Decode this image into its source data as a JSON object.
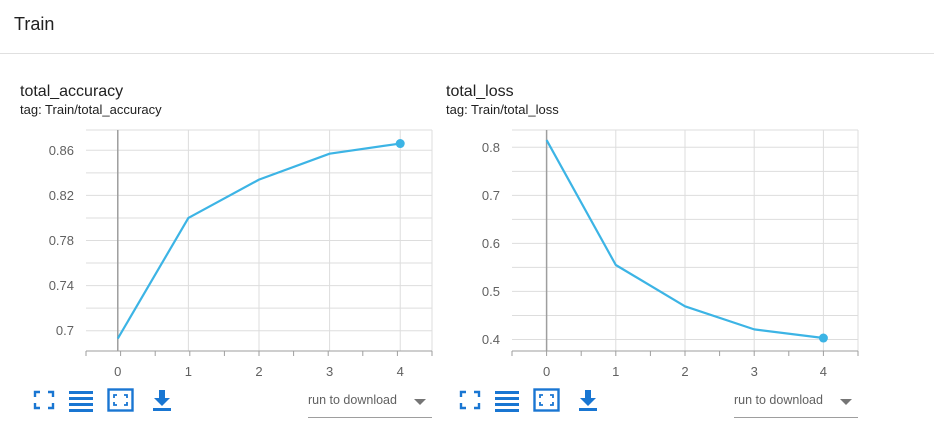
{
  "section": {
    "title": "Train"
  },
  "colors": {
    "series": "#3cb4e5",
    "grid": "#dddddd",
    "axis": "#9e9e9e",
    "zero_line": "#9e9e9e",
    "icon": "#1976d2"
  },
  "toolbar_icons": [
    "fullscreen-icon",
    "toggle-log-scale-icon",
    "fit-domain-icon",
    "download-icon"
  ],
  "cards": [
    {
      "title": "total_accuracy",
      "tag": "tag: Train/total_accuracy",
      "download_select": {
        "label": "run to download"
      },
      "chart_data": {
        "type": "line",
        "title": "total_accuracy",
        "x": [
          0,
          1,
          2,
          3,
          4
        ],
        "series": [
          {
            "values": [
              0.693,
              0.8,
              0.834,
              0.857,
              0.866
            ]
          }
        ],
        "xlim": [
          -0.45,
          4.45
        ],
        "ylim": [
          0.682,
          0.878
        ],
        "yticks": [
          0.7,
          0.74,
          0.78,
          0.82,
          0.86
        ],
        "ytick_labels": [
          "0.7",
          "0.74",
          "0.78",
          "0.82",
          "0.86"
        ],
        "xticks": [
          0,
          1,
          2,
          3,
          4
        ],
        "xtick_labels": [
          "0",
          "1",
          "2",
          "3",
          "4"
        ],
        "grid": true,
        "last_point_marker": true
      }
    },
    {
      "title": "total_loss",
      "tag": "tag: Train/total_loss",
      "download_select": {
        "label": "run to download"
      },
      "chart_data": {
        "type": "line",
        "title": "total_loss",
        "x": [
          0,
          1,
          2,
          3,
          4
        ],
        "series": [
          {
            "values": [
              0.815,
              0.555,
              0.469,
              0.421,
              0.403
            ]
          }
        ],
        "xlim": [
          -0.5,
          4.5
        ],
        "ylim": [
          0.376,
          0.836
        ],
        "yticks": [
          0.4,
          0.5,
          0.6,
          0.7,
          0.8
        ],
        "ytick_labels": [
          "0.4",
          "0.5",
          "0.6",
          "0.7",
          "0.8"
        ],
        "xticks": [
          0,
          1,
          2,
          3,
          4
        ],
        "xtick_labels": [
          "0",
          "1",
          "2",
          "3",
          "4"
        ],
        "grid": true,
        "last_point_marker": true
      }
    }
  ]
}
